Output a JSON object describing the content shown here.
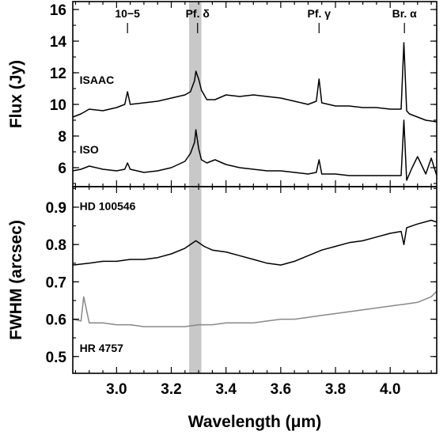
{
  "chart_data": [
    {
      "type": "line",
      "panel": "top",
      "ylabel": "Flux (Jy)",
      "xlim": [
        2.84,
        4.17
      ],
      "ylim": [
        4.8,
        16.5
      ],
      "yticks": [
        6,
        8,
        10,
        12,
        14,
        16
      ],
      "yticklabels": [
        "6",
        "8",
        "10",
        "12",
        "14",
        "16"
      ],
      "line_ids": [
        {
          "label": "10−5",
          "x": 3.04
        },
        {
          "label": "Pf. δ",
          "x": 3.296
        },
        {
          "label": "Pf. γ",
          "x": 3.74
        },
        {
          "label": "Br. α",
          "x": 4.052
        }
      ],
      "series": [
        {
          "name": "ISAAC",
          "color": "#000000",
          "x": [
            2.84,
            2.87,
            2.9,
            2.95,
            3.0,
            3.03,
            3.04,
            3.05,
            3.1,
            3.15,
            3.2,
            3.25,
            3.27,
            3.285,
            3.29,
            3.3,
            3.31,
            3.33,
            3.36,
            3.4,
            3.45,
            3.5,
            3.55,
            3.6,
            3.65,
            3.7,
            3.73,
            3.74,
            3.75,
            3.8,
            3.85,
            3.9,
            3.95,
            4.0,
            4.04,
            4.05,
            4.06,
            4.07,
            4.1,
            4.13,
            4.17
          ],
          "y": [
            9.2,
            9.4,
            9.7,
            9.6,
            9.8,
            10.0,
            10.8,
            10.0,
            10.1,
            10.2,
            10.4,
            10.6,
            10.8,
            11.5,
            12.1,
            11.6,
            10.9,
            10.3,
            10.3,
            10.6,
            10.5,
            10.6,
            10.5,
            10.4,
            10.2,
            10.0,
            10.2,
            11.6,
            10.1,
            9.9,
            9.9,
            9.8,
            9.8,
            9.7,
            9.7,
            13.9,
            9.6,
            9.4,
            9.2,
            9.0,
            8.9
          ]
        },
        {
          "name": "ISO",
          "color": "#000000",
          "x": [
            2.84,
            2.87,
            2.9,
            2.95,
            3.0,
            3.03,
            3.04,
            3.05,
            3.1,
            3.15,
            3.2,
            3.25,
            3.27,
            3.285,
            3.29,
            3.3,
            3.31,
            3.33,
            3.36,
            3.4,
            3.45,
            3.5,
            3.55,
            3.6,
            3.65,
            3.7,
            3.73,
            3.74,
            3.75,
            3.8,
            3.85,
            3.9,
            3.95,
            4.0,
            4.04,
            4.05,
            4.06,
            4.08,
            4.1,
            4.13,
            4.15,
            4.17
          ],
          "y": [
            5.8,
            5.9,
            6.1,
            5.9,
            5.8,
            5.9,
            6.3,
            5.9,
            5.7,
            5.8,
            6.0,
            6.4,
            6.9,
            7.6,
            8.4,
            7.2,
            6.5,
            6.3,
            6.5,
            6.2,
            6.0,
            5.9,
            5.8,
            5.8,
            5.7,
            5.6,
            5.7,
            6.5,
            5.6,
            5.6,
            5.5,
            5.5,
            5.5,
            5.5,
            5.5,
            9.0,
            5.2,
            6.0,
            6.7,
            5.6,
            6.6,
            5.5
          ]
        }
      ],
      "series_labels": [
        {
          "text": "ISAAC",
          "x": 2.865,
          "y": 11.3
        },
        {
          "text": "ISO",
          "x": 2.865,
          "y": 6.9
        }
      ],
      "shaded_band": {
        "x0": 3.265,
        "x1": 3.31,
        "color": "#c8c8c8"
      }
    },
    {
      "type": "line",
      "panel": "bottom",
      "xlabel": "Wavelength (μm)",
      "ylabel": "FWHM (arcsec)",
      "xlim": [
        2.84,
        4.17
      ],
      "ylim": [
        0.455,
        0.955
      ],
      "xticks": [
        3.0,
        3.2,
        3.4,
        3.6,
        3.8,
        4.0
      ],
      "xticklabels": [
        "3.0",
        "3.2",
        "3.4",
        "3.6",
        "3.8",
        "4.0"
      ],
      "yticks": [
        0.5,
        0.6,
        0.7,
        0.8,
        0.9
      ],
      "yticklabels": [
        "0.5",
        "0.6",
        "0.7",
        "0.8",
        "0.9"
      ],
      "series": [
        {
          "name": "HD 100546",
          "color": "#000000",
          "x": [
            2.84,
            2.9,
            2.95,
            3.0,
            3.05,
            3.1,
            3.15,
            3.2,
            3.25,
            3.29,
            3.3,
            3.32,
            3.35,
            3.4,
            3.45,
            3.5,
            3.55,
            3.6,
            3.65,
            3.7,
            3.75,
            3.8,
            3.85,
            3.9,
            3.95,
            4.0,
            4.04,
            4.05,
            4.06,
            4.1,
            4.15,
            4.17
          ],
          "y": [
            0.745,
            0.75,
            0.755,
            0.755,
            0.76,
            0.76,
            0.765,
            0.775,
            0.79,
            0.81,
            0.805,
            0.795,
            0.785,
            0.78,
            0.77,
            0.76,
            0.75,
            0.745,
            0.755,
            0.77,
            0.785,
            0.795,
            0.805,
            0.81,
            0.82,
            0.83,
            0.835,
            0.8,
            0.845,
            0.855,
            0.865,
            0.86
          ]
        },
        {
          "name": "HR 4757",
          "color": "#888888",
          "x": [
            2.84,
            2.87,
            2.88,
            2.9,
            2.95,
            3.0,
            3.05,
            3.1,
            3.15,
            3.2,
            3.25,
            3.3,
            3.35,
            3.4,
            3.45,
            3.5,
            3.55,
            3.6,
            3.65,
            3.7,
            3.75,
            3.8,
            3.85,
            3.9,
            3.95,
            4.0,
            4.05,
            4.1,
            4.15,
            4.17
          ],
          "y": [
            0.6,
            0.595,
            0.66,
            0.59,
            0.59,
            0.585,
            0.585,
            0.58,
            0.58,
            0.58,
            0.58,
            0.585,
            0.585,
            0.59,
            0.59,
            0.59,
            0.595,
            0.6,
            0.6,
            0.605,
            0.61,
            0.615,
            0.62,
            0.625,
            0.63,
            0.635,
            0.64,
            0.645,
            0.66,
            0.675
          ]
        }
      ],
      "series_labels": [
        {
          "text": "HD 100546",
          "x": 2.865,
          "y": 0.893,
          "color": "#000000"
        },
        {
          "text": "HR 4757",
          "x": 2.865,
          "y": 0.512,
          "color": "#888888"
        }
      ],
      "shaded_band": {
        "x0": 3.265,
        "x1": 3.31,
        "color": "#c8c8c8"
      }
    }
  ]
}
